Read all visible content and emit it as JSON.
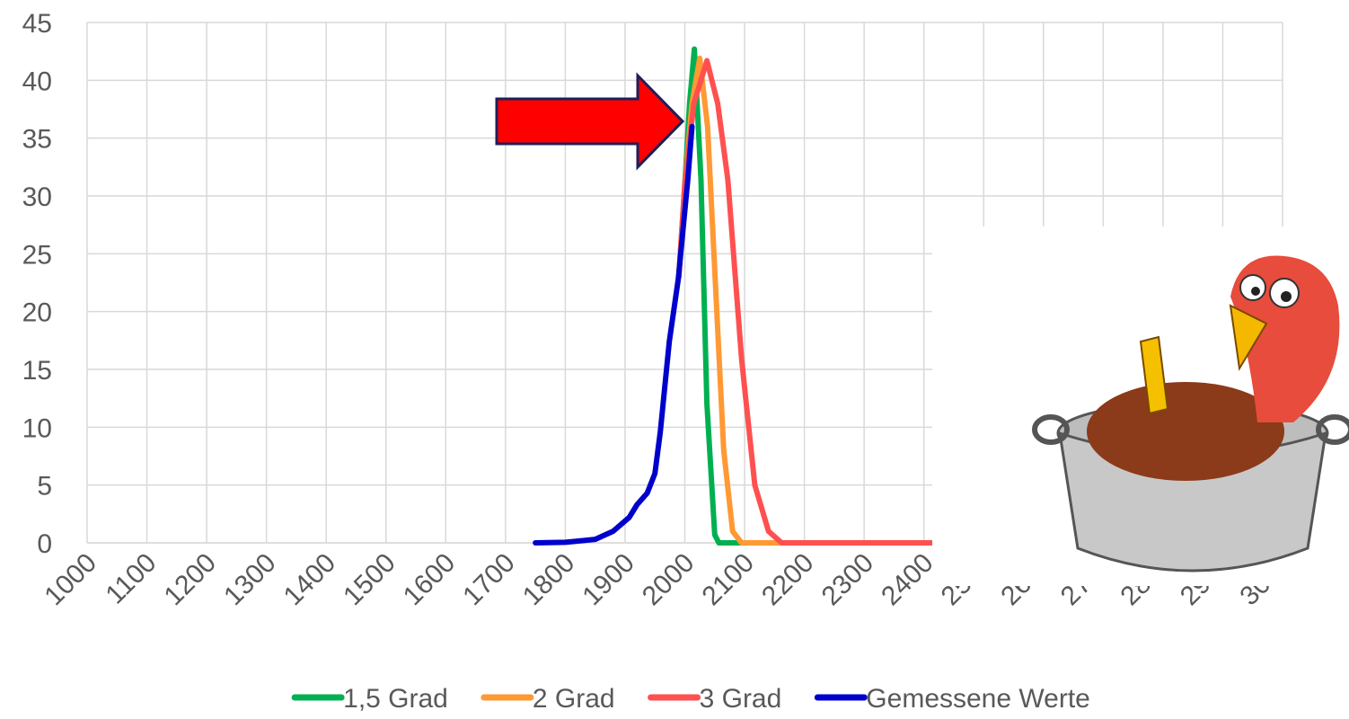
{
  "chart_data": {
    "type": "line",
    "xlim": [
      1000,
      3000
    ],
    "xticks": [
      1000,
      1100,
      1200,
      1300,
      1400,
      1500,
      1600,
      1700,
      1800,
      1900,
      2000,
      2100,
      2200,
      2300,
      2400,
      2500,
      2600,
      2700,
      2800,
      2900,
      3000
    ],
    "ylim": [
      0,
      45
    ],
    "yticks": [
      0,
      5,
      10,
      15,
      20,
      25,
      30,
      35,
      40,
      45
    ],
    "grid": true,
    "legend": "bottom",
    "series": [
      {
        "name": "1,5 Grad",
        "color": "#00b050",
        "x": [
          1990,
          2000,
          2008,
          2016,
          2027,
          2037,
          2050,
          2057,
          3000
        ],
        "values": [
          23,
          31,
          38,
          42.7,
          31.4,
          12,
          0.7,
          0,
          0
        ]
      },
      {
        "name": "2 Grad",
        "color": "#ff9933",
        "x": [
          1990,
          2000,
          2012,
          2025,
          2038,
          2050,
          2065,
          2080,
          2095,
          3000
        ],
        "values": [
          23,
          31,
          38,
          41.9,
          36,
          23.6,
          8,
          1,
          0,
          0
        ]
      },
      {
        "name": "3 Grad",
        "color": "#ff5050",
        "x": [
          1990,
          2000,
          2015,
          2037,
          2055,
          2072,
          2095,
          2117,
          2140,
          2162,
          3000
        ],
        "values": [
          23,
          31,
          38,
          41.7,
          38,
          31.4,
          15.9,
          5,
          1,
          0,
          0
        ]
      },
      {
        "name": "Gemessene Werte",
        "color": "#0000cc",
        "x": [
          1750,
          1800,
          1850,
          1880,
          1907,
          1920,
          1937,
          1950,
          1959,
          1974,
          1989,
          2005,
          2012
        ],
        "values": [
          0,
          0.05,
          0.3,
          1,
          2.2,
          3.3,
          4.3,
          6,
          9.6,
          17.4,
          22.8,
          31.4,
          36
        ]
      }
    ]
  }
}
